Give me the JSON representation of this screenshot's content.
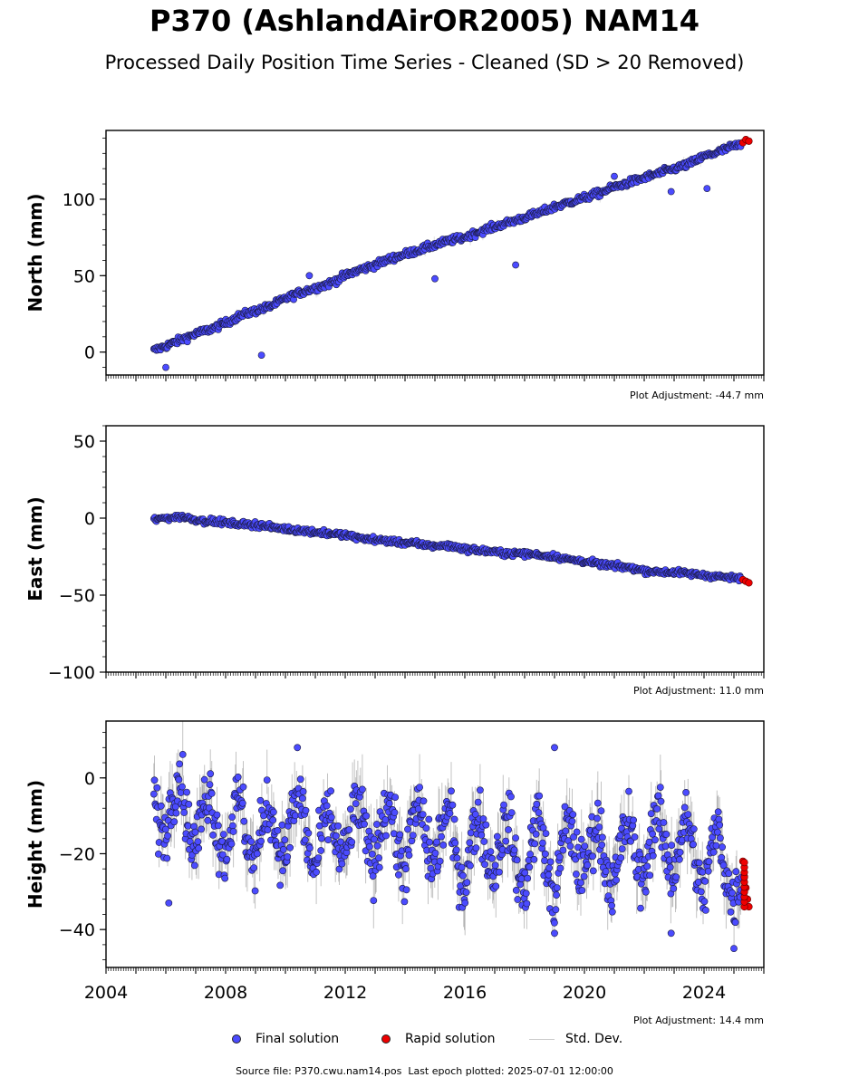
{
  "title": "P370 (AshlandAirOR2005) NAM14",
  "subtitle": "Processed Daily Position Time Series - Cleaned (SD > 20 Removed)",
  "footer": {
    "source_label": "Source file: P370.cwu.nam14.pos",
    "last_epoch": "Last epoch plotted: 2025-07-01 12:00:00"
  },
  "legend": {
    "final": "Final solution",
    "rapid": "Rapid solution",
    "std": "Std. Dev."
  },
  "colors": {
    "final": "#4b4bff",
    "rapid": "#ee0000",
    "std": "#bdbdbd",
    "edge": "#1a1a40"
  },
  "chart_data": [
    {
      "type": "scatter",
      "ylabel": "North (mm)",
      "adjustment": "Plot Adjustment: -44.7 mm",
      "xlim": [
        2004,
        2026
      ],
      "ylim": [
        -15,
        145
      ],
      "yticks": [
        0,
        50,
        100
      ],
      "xticks": [
        2004,
        2008,
        2012,
        2016,
        2020,
        2024
      ],
      "grid": false,
      "series": [
        {
          "legend": "final",
          "x": [
            2005.6,
            2006.0,
            2006.5,
            2007.0,
            2007.5,
            2008.0,
            2008.5,
            2009.0,
            2009.5,
            2010.0,
            2010.5,
            2011.0,
            2011.5,
            2012.0,
            2012.5,
            2013.0,
            2013.5,
            2014.0,
            2014.5,
            2015.0,
            2015.5,
            2016.0,
            2016.5,
            2017.0,
            2017.5,
            2018.0,
            2018.5,
            2019.0,
            2019.5,
            2020.0,
            2020.5,
            2021.0,
            2021.5,
            2022.0,
            2022.5,
            2023.0,
            2023.5,
            2024.0,
            2024.5,
            2025.0
          ],
          "y": [
            1,
            4,
            8,
            12,
            15,
            19,
            24,
            27,
            30,
            35,
            39,
            42,
            45,
            50,
            54,
            57,
            61,
            64,
            67,
            70,
            73,
            75,
            79,
            82,
            85,
            88,
            91,
            95,
            98,
            101,
            104,
            108,
            111,
            114,
            117,
            120,
            123,
            128,
            131,
            135
          ],
          "outliers": [
            [
              2006.0,
              -10
            ],
            [
              2009.2,
              -2
            ],
            [
              2010.8,
              50
            ],
            [
              2015.0,
              48
            ],
            [
              2017.7,
              57
            ],
            [
              2021.0,
              115
            ],
            [
              2022.9,
              105
            ],
            [
              2024.1,
              107
            ]
          ]
        },
        {
          "legend": "rapid",
          "x": [
            2025.3,
            2025.4,
            2025.5
          ],
          "y": [
            137,
            139,
            138
          ]
        }
      ]
    },
    {
      "type": "scatter",
      "ylabel": "East (mm)",
      "adjustment": "Plot Adjustment: 11.0 mm",
      "xlim": [
        2004,
        2026
      ],
      "ylim": [
        -100,
        60
      ],
      "yticks": [
        -100,
        -50,
        0,
        50
      ],
      "xticks": [
        2004,
        2008,
        2012,
        2016,
        2020,
        2024
      ],
      "grid": false,
      "series": [
        {
          "legend": "final",
          "x": [
            2005.6,
            2006.0,
            2006.5,
            2007.0,
            2007.5,
            2008.0,
            2008.5,
            2009.0,
            2009.5,
            2010.0,
            2010.5,
            2011.0,
            2011.5,
            2012.0,
            2012.5,
            2013.0,
            2013.5,
            2014.0,
            2014.5,
            2015.0,
            2015.5,
            2016.0,
            2016.5,
            2017.0,
            2017.5,
            2018.0,
            2018.5,
            2019.0,
            2019.5,
            2020.0,
            2020.5,
            2021.0,
            2021.5,
            2022.0,
            2022.5,
            2023.0,
            2023.5,
            2024.0,
            2024.5,
            2025.0
          ],
          "y": [
            -1,
            0,
            1,
            -1,
            -2,
            -3,
            -4,
            -4,
            -6,
            -7,
            -8,
            -9,
            -10,
            -11,
            -13,
            -14,
            -15,
            -16,
            -17,
            -18,
            -18,
            -20,
            -21,
            -22,
            -23,
            -23,
            -24,
            -25,
            -27,
            -28,
            -30,
            -31,
            -32,
            -34,
            -35,
            -35,
            -36,
            -37,
            -38,
            -39
          ],
          "outliers": []
        },
        {
          "legend": "rapid",
          "x": [
            2025.3,
            2025.4,
            2025.5
          ],
          "y": [
            -40,
            -41,
            -42
          ]
        }
      ]
    },
    {
      "type": "scatter",
      "ylabel": "Height (mm)",
      "adjustment": "Plot Adjustment: 14.4 mm",
      "xlim": [
        2004,
        2026
      ],
      "ylim": [
        -50,
        15
      ],
      "yticks": [
        -40,
        -20,
        0
      ],
      "xticks": [
        2004,
        2008,
        2012,
        2016,
        2020,
        2024
      ],
      "xticklabels": [
        "2004",
        "2008",
        "2012",
        "2016",
        "2020",
        "2024"
      ],
      "grid": false,
      "series": [
        {
          "legend": "final",
          "x": [
            2005.6,
            2006.0,
            2006.5,
            2007.0,
            2007.5,
            2008.0,
            2008.5,
            2009.0,
            2009.5,
            2010.0,
            2010.5,
            2011.0,
            2011.5,
            2012.0,
            2012.5,
            2013.0,
            2013.5,
            2014.0,
            2014.5,
            2015.0,
            2015.5,
            2016.0,
            2016.5,
            2017.0,
            2017.5,
            2018.0,
            2018.5,
            2019.0,
            2019.5,
            2020.0,
            2020.5,
            2021.0,
            2021.5,
            2022.0,
            2022.5,
            2023.0,
            2023.5,
            2024.0,
            2024.5,
            2025.0
          ],
          "y": [
            -5,
            -12,
            -2,
            -16,
            -6,
            -18,
            -8,
            -20,
            -10,
            -18,
            -7,
            -22,
            -12,
            -18,
            -10,
            -20,
            -8,
            -22,
            -10,
            -20,
            -12,
            -26,
            -12,
            -22,
            -14,
            -28,
            -12,
            -30,
            -14,
            -22,
            -16,
            -26,
            -14,
            -24,
            -12,
            -22,
            -14,
            -28,
            -16,
            -30
          ],
          "outliers": [
            [
              2006.1,
              -33
            ],
            [
              2010.4,
              8
            ],
            [
              2019.0,
              -41
            ],
            [
              2019.0,
              8
            ],
            [
              2022.9,
              -41
            ],
            [
              2025.0,
              -45
            ]
          ]
        },
        {
          "legend": "rapid",
          "x": [
            2025.3,
            2025.35,
            2025.4,
            2025.45,
            2025.5
          ],
          "y": [
            -22,
            -26,
            -29,
            -32,
            -34
          ]
        }
      ]
    }
  ]
}
